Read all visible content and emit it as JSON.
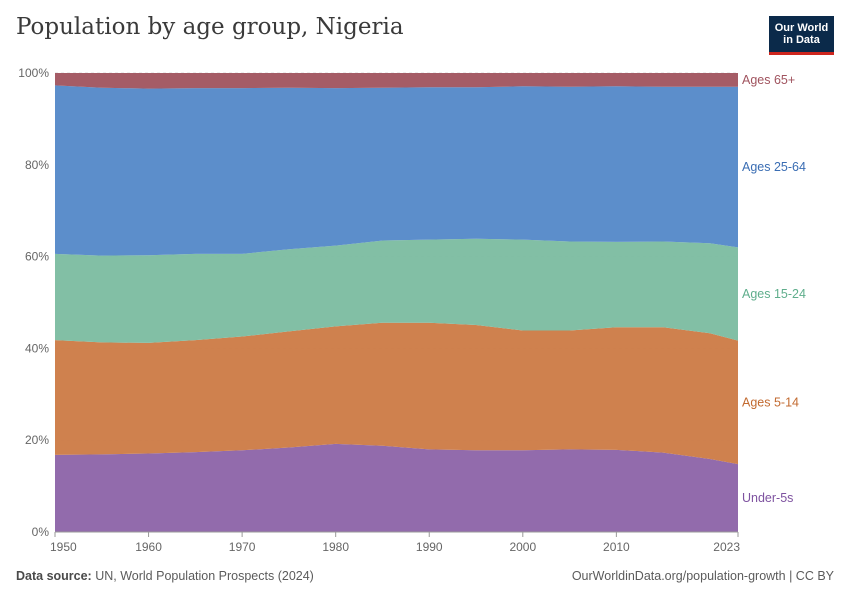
{
  "header": {
    "title": "Population by age group, Nigeria"
  },
  "logo": {
    "line1": "Our World",
    "line2": "in Data"
  },
  "footer": {
    "source_label": "Data source:",
    "source_value": "UN, World Population Prospects (2024)",
    "credit": "OurWorldinData.org/population-growth | CC BY"
  },
  "chart_data": {
    "type": "area",
    "stacked": true,
    "normalized": true,
    "title": "Population by age group, Nigeria",
    "xlabel": "",
    "ylabel": "",
    "xlim": [
      1950,
      2023
    ],
    "ylim": [
      0,
      100
    ],
    "x_ticks": [
      1950,
      1960,
      1970,
      1980,
      1990,
      2000,
      2010,
      2023
    ],
    "x_tick_labels": [
      "1950",
      "1960",
      "1970",
      "1980",
      "1990",
      "2000",
      "2010",
      "2023"
    ],
    "y_ticks": [
      0,
      20,
      40,
      60,
      80,
      100
    ],
    "y_tick_labels": [
      "0%",
      "20%",
      "40%",
      "60%",
      "80%",
      "100%"
    ],
    "x": [
      1950,
      1955,
      1960,
      1965,
      1970,
      1975,
      1980,
      1985,
      1990,
      1995,
      2000,
      2005,
      2010,
      2015,
      2020,
      2023
    ],
    "series": [
      {
        "name": "Under-5s",
        "color": "#8c63a8",
        "values": [
          16.8,
          16.9,
          17.1,
          17.4,
          17.8,
          18.4,
          19.2,
          18.8,
          18.0,
          17.8,
          17.8,
          18.0,
          17.9,
          17.3,
          15.9,
          14.8
        ]
      },
      {
        "name": "Ages 5-14",
        "color": "#cc7a44",
        "values": [
          25.0,
          24.4,
          24.1,
          24.4,
          24.8,
          25.3,
          25.6,
          26.8,
          27.6,
          27.3,
          26.1,
          25.9,
          26.7,
          27.3,
          27.4,
          26.9
        ]
      },
      {
        "name": "Ages 15-24",
        "color": "#7bbca0",
        "values": [
          18.8,
          18.9,
          19.1,
          18.8,
          18.0,
          17.9,
          17.6,
          17.9,
          18.1,
          18.8,
          19.8,
          19.4,
          18.6,
          18.7,
          19.6,
          20.3
        ]
      },
      {
        "name": "Ages 25-64",
        "color": "#5388c8",
        "values": [
          36.7,
          36.6,
          36.3,
          36.1,
          36.1,
          35.2,
          34.3,
          33.3,
          33.2,
          33.0,
          33.4,
          33.7,
          33.9,
          33.7,
          34.1,
          35.0
        ]
      },
      {
        "name": "Ages 65+",
        "color": "#a0535e",
        "values": [
          2.7,
          3.2,
          3.4,
          3.3,
          3.3,
          3.2,
          3.3,
          3.2,
          3.1,
          3.1,
          2.9,
          3.0,
          2.9,
          3.0,
          3.0,
          3.0
        ]
      }
    ],
    "legend": [
      "Ages 65+",
      "Ages 25-64",
      "Ages 15-24",
      "Ages 5-14",
      "Under-5s"
    ],
    "legend_colors": [
      "#a0535e",
      "#3a6db3",
      "#5fae8c",
      "#c26a30",
      "#7e52a0"
    ]
  }
}
